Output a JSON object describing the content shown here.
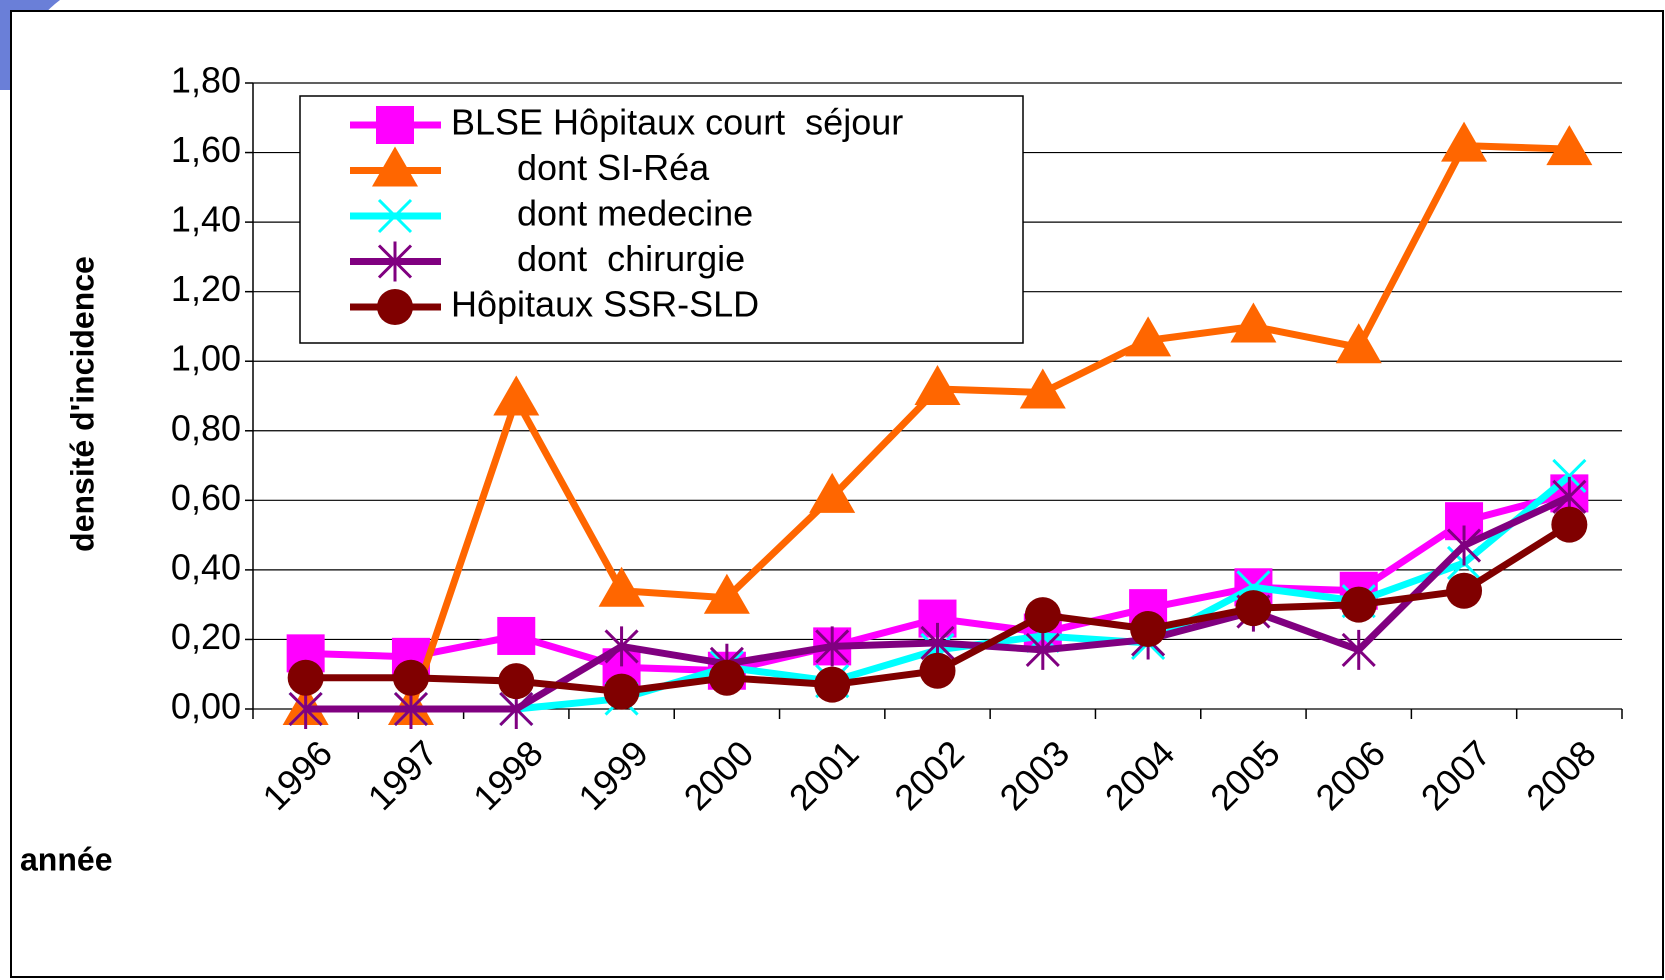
{
  "chart_data": {
    "type": "line",
    "xlabel": "année",
    "ylabel": "densité d'incidence",
    "categories": [
      "1996",
      "1997",
      "1998",
      "1999",
      "2000",
      "2001",
      "2002",
      "2003",
      "2004",
      "2005",
      "2006",
      "2007",
      "2008"
    ],
    "series": [
      {
        "name": "BLSE Hôpitaux court  séjour",
        "color": "#ff00ff",
        "marker": "square",
        "values": [
          0.16,
          0.15,
          0.21,
          0.12,
          0.11,
          0.18,
          0.26,
          0.22,
          0.29,
          0.35,
          0.34,
          0.54,
          0.62
        ]
      },
      {
        "name": "dont SI-Réa",
        "color": "#ff6600",
        "marker": "triangle",
        "values": [
          0.0,
          0.0,
          0.89,
          0.34,
          0.32,
          0.61,
          0.92,
          0.91,
          1.06,
          1.1,
          1.04,
          1.62,
          1.61
        ]
      },
      {
        "name": "dont medecine",
        "color": "#00ffff",
        "marker": "x",
        "values": [
          0.0,
          0.0,
          0.0,
          0.03,
          0.12,
          0.08,
          0.17,
          0.21,
          0.19,
          0.35,
          0.31,
          0.42,
          0.67
        ]
      },
      {
        "name": "dont  chirurgie",
        "color": "#800080",
        "marker": "star",
        "values": [
          0.0,
          0.0,
          0.0,
          0.18,
          0.13,
          0.18,
          0.19,
          0.17,
          0.2,
          0.28,
          0.17,
          0.47,
          0.61
        ]
      },
      {
        "name": "Hôpitaux SSR-SLD",
        "color": "#800000",
        "marker": "circle",
        "values": [
          0.09,
          0.09,
          0.08,
          0.05,
          0.09,
          0.07,
          0.11,
          0.27,
          0.23,
          0.29,
          0.3,
          0.34,
          0.53
        ]
      }
    ],
    "ylim": [
      0,
      1.8
    ],
    "yticks": [
      {
        "value": 0,
        "label": "0,00"
      },
      {
        "value": 0.2,
        "label": "0,20"
      },
      {
        "value": 0.4,
        "label": "0,40"
      },
      {
        "value": 0.6,
        "label": "0,60"
      },
      {
        "value": 0.8,
        "label": "0,80"
      },
      {
        "value": 1.0,
        "label": "1,00"
      },
      {
        "value": 1.2,
        "label": "1,20"
      },
      {
        "value": 1.4,
        "label": "1,40"
      },
      {
        "value": 1.6,
        "label": "1,60"
      },
      {
        "value": 1.8,
        "label": "1,80"
      }
    ],
    "grid": true
  }
}
